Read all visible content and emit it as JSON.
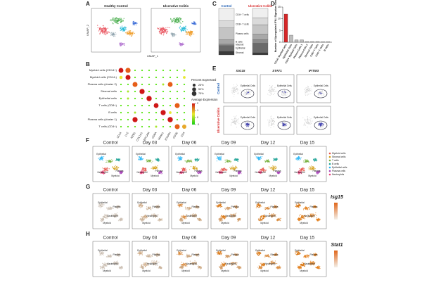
{
  "panel_letters": [
    "A",
    "B",
    "C",
    "D",
    "E",
    "F",
    "G",
    "H"
  ],
  "umap": {
    "titles": [
      "Healthy Control",
      "Ulcerative Colitis"
    ],
    "x_label": "UMAP_1",
    "y_label": "UMAP_2"
  },
  "dot_plot": {
    "rows": [
      "Myeloid cells (CD14+)",
      "Myeloid cells (CD14-)",
      "Plasma cells (cluster 2)",
      "Stromal cells",
      "Epithelial cells",
      "T cells (CD8+)",
      "B cells",
      "Plasma cells (cluster 1)",
      "T cells (CD4+)"
    ],
    "genes": [
      "CD14",
      "LYZ",
      "MZB1",
      "COL1A1",
      "EPCAM",
      "CD8A",
      "MS4A1",
      "JCHAIN",
      "CD3E",
      "CD4"
    ],
    "percent": [
      [
        80,
        90,
        5,
        5,
        5,
        5,
        5,
        5,
        5,
        10
      ],
      [
        30,
        85,
        5,
        5,
        5,
        5,
        5,
        5,
        5,
        20
      ],
      [
        5,
        5,
        85,
        5,
        5,
        5,
        10,
        80,
        5,
        5
      ],
      [
        5,
        10,
        5,
        90,
        5,
        5,
        5,
        5,
        5,
        5
      ],
      [
        5,
        10,
        5,
        5,
        95,
        5,
        5,
        5,
        5,
        5
      ],
      [
        5,
        5,
        5,
        5,
        5,
        80,
        5,
        5,
        85,
        5
      ],
      [
        5,
        5,
        10,
        5,
        5,
        5,
        90,
        20,
        5,
        5
      ],
      [
        5,
        5,
        90,
        5,
        5,
        5,
        5,
        95,
        5,
        5
      ],
      [
        5,
        5,
        5,
        5,
        5,
        10,
        5,
        5,
        85,
        60
      ]
    ],
    "average": [
      [
        2,
        1.5,
        -0.5,
        -0.5,
        -0.5,
        -0.5,
        -0.5,
        -0.5,
        -0.5,
        0
      ],
      [
        0.5,
        2,
        -0.5,
        -0.5,
        -0.5,
        -0.5,
        -0.5,
        -0.5,
        -0.5,
        0.5
      ],
      [
        -0.5,
        -0.5,
        1.5,
        -0.5,
        -0.5,
        -0.5,
        0,
        1.5,
        -0.5,
        -0.5
      ],
      [
        -0.5,
        0,
        -0.5,
        2,
        -0.5,
        -0.5,
        -0.5,
        -0.5,
        -0.5,
        -0.5
      ],
      [
        -0.5,
        0,
        -0.5,
        -0.5,
        2,
        -0.5,
        -0.5,
        -0.5,
        -0.5,
        -0.5
      ],
      [
        -0.5,
        -0.5,
        -0.5,
        -0.5,
        -0.5,
        2,
        -0.5,
        -0.5,
        1.5,
        -0.5
      ],
      [
        -0.5,
        -0.5,
        0,
        -0.5,
        -0.5,
        -0.5,
        2,
        0.5,
        -0.5,
        -0.5
      ],
      [
        -0.5,
        -0.5,
        2,
        -0.5,
        -0.5,
        -0.5,
        -0.5,
        2,
        -0.5,
        -0.5
      ],
      [
        -0.5,
        -0.5,
        -0.5,
        -0.5,
        -0.5,
        0,
        -0.5,
        -0.5,
        1.5,
        1
      ]
    ],
    "percent_title": "Percent Expressed",
    "percent_ticks": [
      {
        "value": 25,
        "label": "25%"
      },
      {
        "value": 50,
        "label": "50%"
      },
      {
        "value": 75,
        "label": "75%"
      }
    ],
    "average_title": "Average Expression",
    "average_ticks": [
      2,
      1,
      0,
      -1
    ]
  },
  "chart_data": [
    {
      "type": "stacked_bar",
      "categories": [
        "Control",
        "Ulcerative Colitis"
      ],
      "category_colors": [
        "#1f5fb4",
        "#d62728"
      ],
      "ylim": [
        0,
        100
      ],
      "series": [
        {
          "name": "Stromal",
          "color": "#3a3a3a",
          "values": [
            8,
            5
          ]
        },
        {
          "name": "Epithelial",
          "color": "#6a6a6a",
          "values": [
            12,
            20
          ]
        },
        {
          "name": "Myeloid",
          "color": "#8c8c8c",
          "values": [
            3,
            8
          ]
        },
        {
          "name": "B cells",
          "color": "#a8a8a8",
          "values": [
            10,
            12
          ]
        },
        {
          "name": "Plasma cells",
          "color": "#c4c4c4",
          "values": [
            25,
            20
          ]
        },
        {
          "name": "CD8+ T cells",
          "color": "#dadada",
          "values": [
            15,
            15
          ]
        },
        {
          "name": "CD4+ T cells",
          "color": "#efefef",
          "values": [
            27,
            20
          ]
        }
      ]
    },
    {
      "type": "bar",
      "y_label": "Number of Upregulated IFN-I Signature Genes",
      "categories": [
        "CD14+ Myeloid Cells",
        "Epithelial Cells",
        "CD14- Myeloid Cells",
        "Plasma Cells 1",
        "Plasma Cells 2",
        "Stromal Cells",
        "CD8+ T Cells",
        "CD4+ T Cells",
        "B Cells"
      ],
      "values": [
        12,
        3,
        1,
        1,
        0.3,
        0.3,
        0.3,
        0.2,
        0.2
      ],
      "colors": [
        "#d62728",
        "#bdbdbd",
        "#bdbdbd",
        "#bdbdbd",
        "#bdbdbd",
        "#bdbdbd",
        "#bdbdbd",
        "#bdbdbd",
        "#bdbdbd"
      ],
      "ylim": [
        0,
        15
      ],
      "yticks": [
        0,
        5,
        10,
        15
      ]
    }
  ],
  "feature_plots": {
    "genes": [
      "ISG15",
      "STAT1",
      "IFITM3"
    ],
    "conditions": [
      "Control",
      "Ulcerative Colitis"
    ],
    "cluster_label": "Epithelial Cells"
  },
  "time_course": {
    "days": [
      "Control",
      "Day 03",
      "Day 06",
      "Day 09",
      "Day 12",
      "Day 15"
    ],
    "cell_types": [
      "Myeloid cells",
      "Stromal cells",
      "T cells",
      "B cells",
      "Epithelial cells",
      "Plasma cells",
      "Neutrophils"
    ],
    "cell_colors": [
      "#e6554a",
      "#d4a017",
      "#7cb342",
      "#26a69a",
      "#29b6f6",
      "#ab47bc",
      "#ec407a"
    ],
    "cluster_labels": [
      "Epithelial",
      "Plasma",
      "Neutrophil",
      "Myeloid"
    ],
    "genes": [
      "Isg15",
      "Stat1"
    ]
  }
}
